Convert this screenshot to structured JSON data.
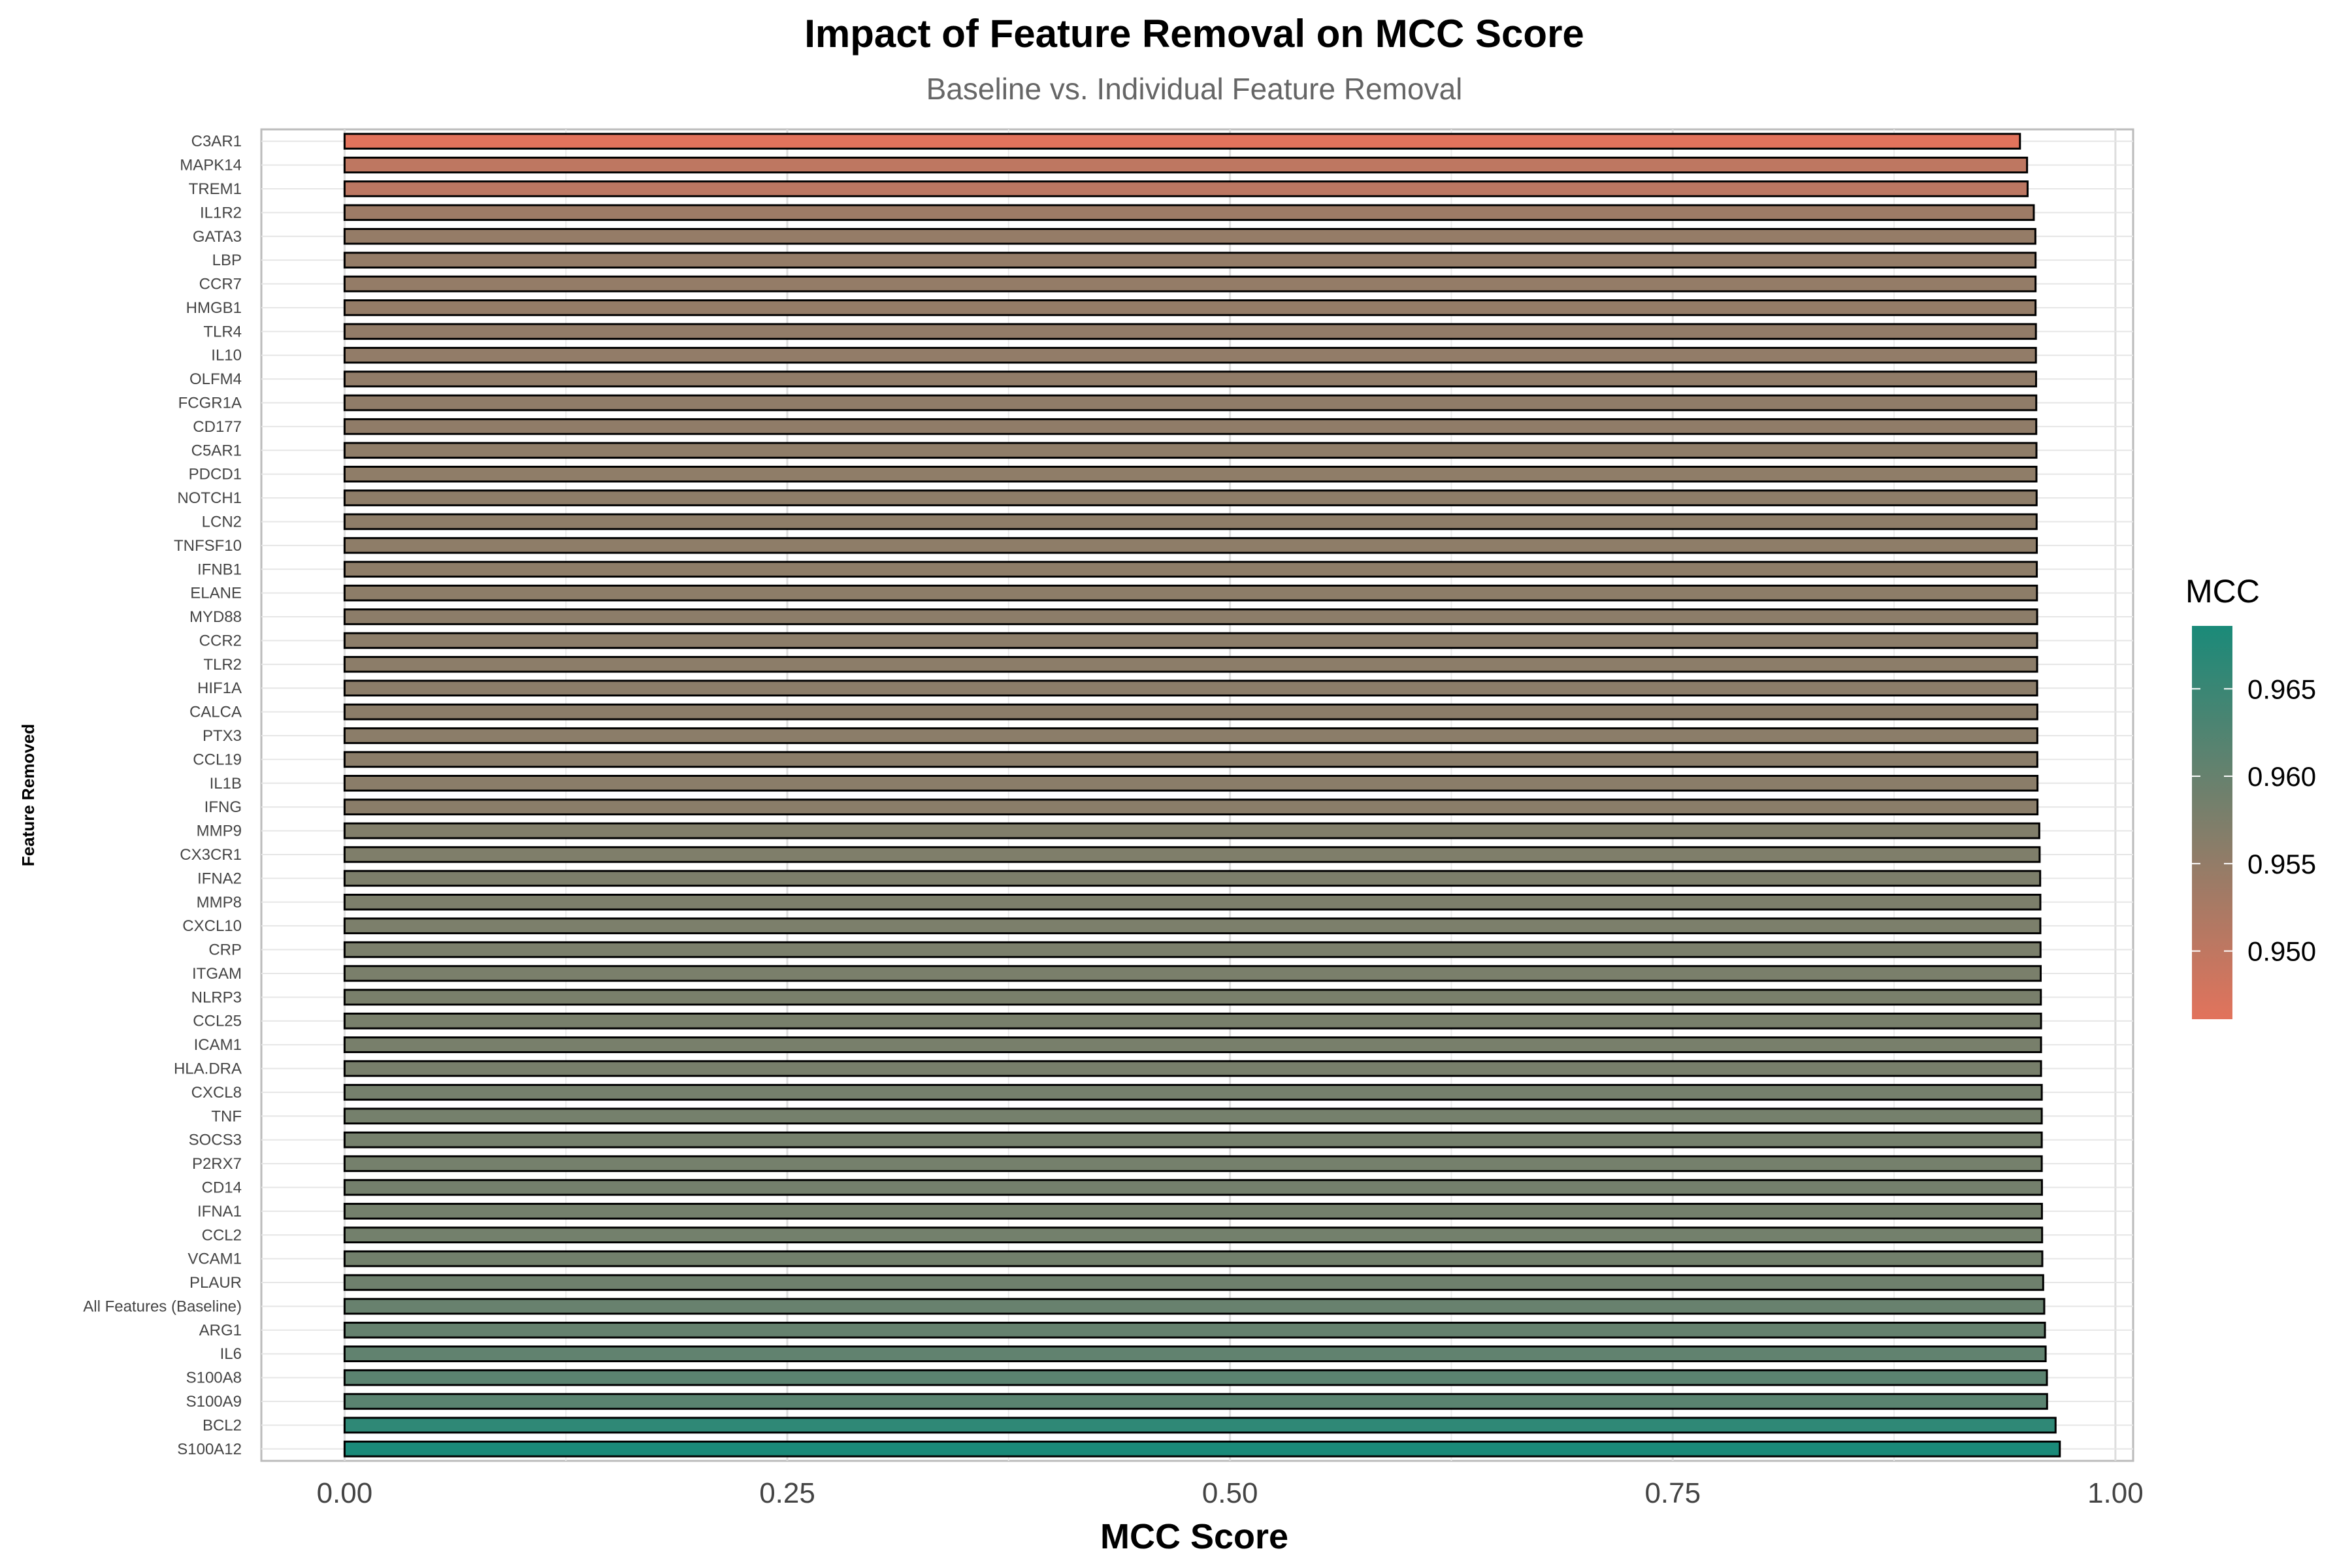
{
  "chart_data": {
    "type": "bar",
    "orientation": "horizontal",
    "title": "Impact of Feature Removal on MCC Score",
    "subtitle": "Baseline vs. Individual Feature Removal",
    "xlabel": "MCC Score",
    "ylabel": "Feature Removed",
    "xlim": [
      -0.047,
      1.01
    ],
    "xticks": [
      "0.00",
      "0.25",
      "0.50",
      "0.75",
      "1.00"
    ],
    "grid": true,
    "legend": {
      "title": "MCC",
      "position": "right",
      "ticks": [
        "0.950",
        "0.955",
        "0.960",
        "0.965"
      ],
      "range": [
        0.9461,
        0.9686
      ],
      "color_low": "#e2735c",
      "color_high": "#1a8a79"
    },
    "categories": [
      "C3AR1",
      "MAPK14",
      "TREM1",
      "IL1R2",
      "GATA3",
      "LBP",
      "CCR7",
      "HMGB1",
      "TLR4",
      "IL10",
      "OLFM4",
      "FCGR1A",
      "CD177",
      "C5AR1",
      "PDCD1",
      "NOTCH1",
      "LCN2",
      "TNFSF10",
      "IFNB1",
      "ELANE",
      "MYD88",
      "CCR2",
      "TLR2",
      "HIF1A",
      "CALCA",
      "PTX3",
      "CCL19",
      "IL1B",
      "IFNG",
      "MMP9",
      "CX3CR1",
      "IFNA2",
      "MMP8",
      "CXCL10",
      "CRP",
      "ITGAM",
      "NLRP3",
      "CCL25",
      "ICAM1",
      "HLA.DRA",
      "CXCL8",
      "TNF",
      "SOCS3",
      "P2RX7",
      "CD14",
      "IFNA1",
      "CCL2",
      "VCAM1",
      "PLAUR",
      "All Features (Baseline)",
      "ARG1",
      "IL6",
      "S100A8",
      "S100A9",
      "BCL2",
      "S100A12"
    ],
    "values": [
      0.9461,
      0.9501,
      0.9504,
      0.9539,
      0.9548,
      0.9549,
      0.9549,
      0.9549,
      0.9551,
      0.9551,
      0.9552,
      0.9553,
      0.9553,
      0.9554,
      0.9554,
      0.9555,
      0.9555,
      0.9556,
      0.9556,
      0.9557,
      0.9558,
      0.9558,
      0.9558,
      0.9558,
      0.9559,
      0.9559,
      0.9559,
      0.956,
      0.956,
      0.957,
      0.9572,
      0.9575,
      0.9576,
      0.9576,
      0.9577,
      0.9578,
      0.9579,
      0.958,
      0.958,
      0.958,
      0.9584,
      0.9584,
      0.9584,
      0.9584,
      0.9585,
      0.9585,
      0.9586,
      0.9587,
      0.9592,
      0.9598,
      0.9602,
      0.9606,
      0.9613,
      0.9614,
      0.9662,
      0.9686
    ]
  }
}
